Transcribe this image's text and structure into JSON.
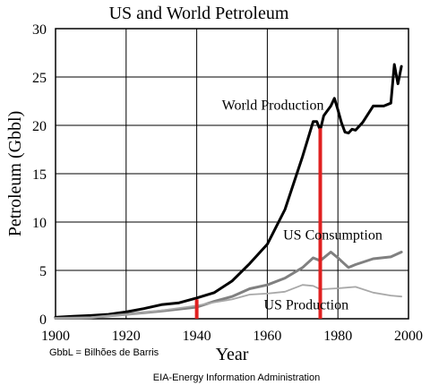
{
  "chart_data": {
    "type": "line",
    "title": "US and World Petroleum",
    "xlabel": "Year",
    "ylabel": "Petroleum (Gbbl)",
    "xlim": [
      1900,
      2000
    ],
    "ylim": [
      0,
      30
    ],
    "x_ticks": [
      1900,
      1920,
      1940,
      1960,
      1980,
      2000
    ],
    "y_ticks": [
      0,
      5,
      10,
      15,
      20,
      25,
      30
    ],
    "grid": true,
    "footnote": "GbbL = Bilhões de Barris",
    "source": "EIA-Energy Information Administration",
    "series": [
      {
        "name": "World Production",
        "color": "#000000",
        "x": [
          1900,
          1905,
          1910,
          1915,
          1920,
          1925,
          1930,
          1935,
          1940,
          1945,
          1950,
          1955,
          1960,
          1965,
          1970,
          1973,
          1974,
          1975,
          1976,
          1978,
          1979,
          1980,
          1981,
          1982,
          1983,
          1984,
          1985,
          1987,
          1990,
          1993,
          1995,
          1996,
          1997,
          1998
        ],
        "y": [
          0.15,
          0.25,
          0.33,
          0.45,
          0.7,
          1.05,
          1.45,
          1.65,
          2.15,
          2.7,
          3.9,
          5.7,
          7.7,
          11.3,
          16.8,
          20.4,
          20.4,
          19.5,
          21.0,
          22.0,
          22.8,
          21.6,
          20.3,
          19.3,
          19.2,
          19.6,
          19.5,
          20.3,
          22.0,
          22.0,
          22.3,
          26.3,
          24.3,
          26.1
        ]
      },
      {
        "name": "US Consumption",
        "color": "#808080",
        "x": [
          1900,
          1910,
          1920,
          1930,
          1940,
          1945,
          1950,
          1955,
          1960,
          1965,
          1970,
          1973,
          1975,
          1978,
          1980,
          1983,
          1985,
          1990,
          1995,
          1998
        ],
        "y": [
          0.05,
          0.12,
          0.45,
          0.8,
          1.2,
          1.8,
          2.3,
          3.1,
          3.5,
          4.2,
          5.3,
          6.3,
          6.0,
          6.9,
          6.3,
          5.3,
          5.6,
          6.2,
          6.4,
          6.9
        ]
      },
      {
        "name": "US Production",
        "color": "#a8a8a8",
        "x": [
          1900,
          1910,
          1920,
          1930,
          1940,
          1945,
          1950,
          1955,
          1960,
          1965,
          1970,
          1973,
          1975,
          1980,
          1985,
          1990,
          1995,
          1998
        ],
        "y": [
          0.05,
          0.12,
          0.42,
          0.85,
          1.35,
          1.7,
          2.0,
          2.5,
          2.6,
          2.8,
          3.5,
          3.4,
          3.05,
          3.15,
          3.3,
          2.7,
          2.4,
          2.3
        ]
      }
    ],
    "annotations": [
      {
        "text": "World Production",
        "x": 1976,
        "y": 21.6,
        "anchor": "end"
      },
      {
        "text": "US Consumption",
        "x": 1964.5,
        "y": 8.2,
        "anchor": "start"
      },
      {
        "text": "US Production",
        "x": 1959,
        "y": 0.95,
        "anchor": "start"
      }
    ],
    "markers": [
      {
        "x": 1940,
        "y_from": 0,
        "y_to": 2.0,
        "color": "#e02020"
      },
      {
        "x": 1975,
        "y_from": 0,
        "y_to": 19.7,
        "color": "#e02020"
      }
    ]
  }
}
